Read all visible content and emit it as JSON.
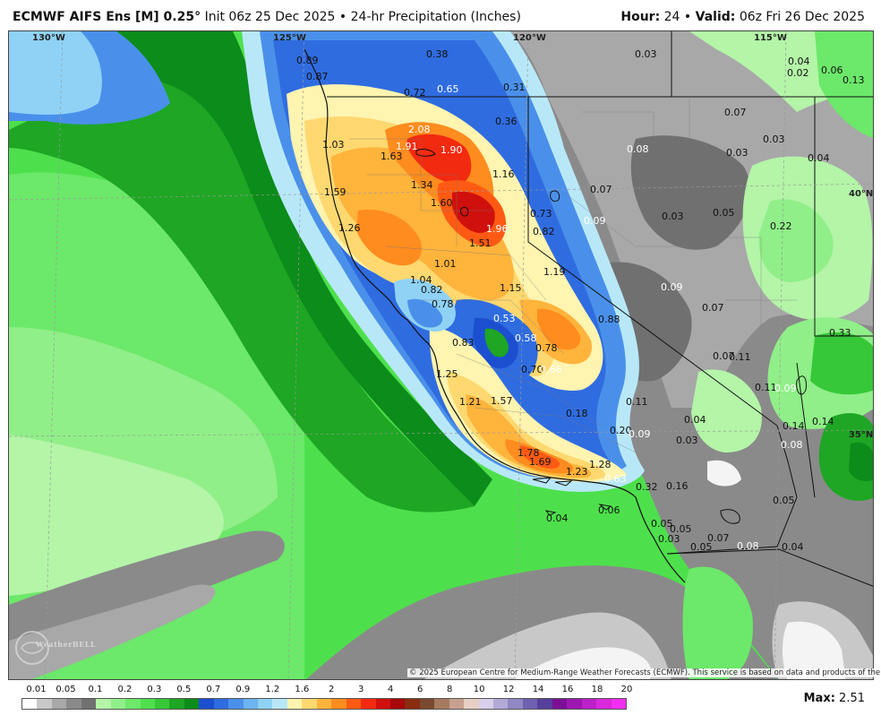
{
  "header": {
    "model_title": "ECMWF AIFS Ens [M] 0.25",
    "degree_symbol": "°",
    "init_text": "Init 06z 25 Dec 2025",
    "bullet": "•",
    "product": "24-hr Precipitation (Inches)",
    "hour_label": "Hour:",
    "hour_value": "24",
    "valid_label": "Valid:",
    "valid_value": "06z Fri 26 Dec 2025"
  },
  "grid_labels": {
    "lon_130": "130°W",
    "lon_125": "125°W",
    "lon_120": "120°W",
    "lon_115": "115°W",
    "lat_40": "40°N",
    "lat_35": "35°N"
  },
  "point_values": [
    {
      "v": "0.89",
      "c": "dark"
    },
    {
      "v": "0.87",
      "c": "dark"
    },
    {
      "v": "0.38",
      "c": "dark"
    },
    {
      "v": "0.72",
      "c": "dark"
    },
    {
      "v": "0.65",
      "c": "white"
    },
    {
      "v": "0.31",
      "c": "dark"
    },
    {
      "v": "0.36",
      "c": "dark"
    },
    {
      "v": "0.03",
      "c": "dark"
    },
    {
      "v": "0.04",
      "c": "dark"
    },
    {
      "v": "0.02",
      "c": "dark"
    },
    {
      "v": "0.06",
      "c": "dark"
    },
    {
      "v": "0.13",
      "c": "dark"
    },
    {
      "v": "2.08",
      "c": "white"
    },
    {
      "v": "1.91",
      "c": "white"
    },
    {
      "v": "1.90",
      "c": "white"
    },
    {
      "v": "1.63",
      "c": "dark"
    },
    {
      "v": "1.03",
      "c": "dark"
    },
    {
      "v": "0.07",
      "c": "dark"
    },
    {
      "v": "0.03",
      "c": "dark"
    },
    {
      "v": "0.08",
      "c": "white"
    },
    {
      "v": "0.03",
      "c": "dark"
    },
    {
      "v": "0.04",
      "c": "dark"
    },
    {
      "v": "1.16",
      "c": "dark"
    },
    {
      "v": "1.34",
      "c": "dark"
    },
    {
      "v": "1.59",
      "c": "dark"
    },
    {
      "v": "0.07",
      "c": "dark"
    },
    {
      "v": "1.60",
      "c": "dark"
    },
    {
      "v": "0.73",
      "c": "dark"
    },
    {
      "v": "0.09",
      "c": "white"
    },
    {
      "v": "0.03",
      "c": "dark"
    },
    {
      "v": "0.05",
      "c": "dark"
    },
    {
      "v": "0.22",
      "c": "dark"
    },
    {
      "v": "1.26",
      "c": "dark"
    },
    {
      "v": "1.96",
      "c": "white"
    },
    {
      "v": "0.82",
      "c": "dark"
    },
    {
      "v": "1.51",
      "c": "dark"
    },
    {
      "v": "1.01",
      "c": "dark"
    },
    {
      "v": "1.19",
      "c": "dark"
    },
    {
      "v": "1.04",
      "c": "dark"
    },
    {
      "v": "0.82",
      "c": "dark"
    },
    {
      "v": "1.15",
      "c": "dark"
    },
    {
      "v": "0.09",
      "c": "white"
    },
    {
      "v": "0.78",
      "c": "dark"
    },
    {
      "v": "0.07",
      "c": "dark"
    },
    {
      "v": "0.53",
      "c": "white"
    },
    {
      "v": "0.88",
      "c": "dark"
    },
    {
      "v": "0.33",
      "c": "dark"
    },
    {
      "v": "0.58",
      "c": "white"
    },
    {
      "v": "0.83",
      "c": "dark"
    },
    {
      "v": "0.78",
      "c": "dark"
    },
    {
      "v": "0.07",
      "c": "dark"
    },
    {
      "v": "0.11",
      "c": "dark"
    },
    {
      "v": "0.70",
      "c": "dark"
    },
    {
      "v": "0.66",
      "c": "white"
    },
    {
      "v": "1.25",
      "c": "dark"
    },
    {
      "v": "0.11",
      "c": "dark"
    },
    {
      "v": "0.09",
      "c": "white"
    },
    {
      "v": "1.21",
      "c": "dark"
    },
    {
      "v": "1.57",
      "c": "dark"
    },
    {
      "v": "0.11",
      "c": "dark"
    },
    {
      "v": "0.18",
      "c": "dark"
    },
    {
      "v": "0.04",
      "c": "dark"
    },
    {
      "v": "0.14",
      "c": "dark"
    },
    {
      "v": "0.14",
      "c": "dark"
    },
    {
      "v": "0.20",
      "c": "dark"
    },
    {
      "v": "0.09",
      "c": "white"
    },
    {
      "v": "0.03",
      "c": "dark"
    },
    {
      "v": "0.08",
      "c": "white"
    },
    {
      "v": "1.78",
      "c": "dark"
    },
    {
      "v": "1.69",
      "c": "dark"
    },
    {
      "v": "1.28",
      "c": "dark"
    },
    {
      "v": "1.23",
      "c": "dark"
    },
    {
      "v": "0.63",
      "c": "white"
    },
    {
      "v": "0.32",
      "c": "dark"
    },
    {
      "v": "0.16",
      "c": "dark"
    },
    {
      "v": "0.05",
      "c": "dark"
    },
    {
      "v": "0.06",
      "c": "dark"
    },
    {
      "v": "0.04",
      "c": "dark"
    },
    {
      "v": "0.05",
      "c": "dark"
    },
    {
      "v": "0.05",
      "c": "dark"
    },
    {
      "v": "0.03",
      "c": "dark"
    },
    {
      "v": "0.07",
      "c": "dark"
    },
    {
      "v": "0.05",
      "c": "dark"
    },
    {
      "v": "0.08",
      "c": "white"
    },
    {
      "v": "0.04",
      "c": "dark"
    }
  ],
  "copyright": "© 2025 European Centre for Medium-Range Weather Forecasts (ECMWF). This service is based on data and products of the ECMWF.",
  "watermark": "WeatherBELL",
  "colorbar": {
    "colors": [
      "#ffffff",
      "#c8c8c8",
      "#a8a8a8",
      "#8a8a8a",
      "#707070",
      "#b4f5a8",
      "#90ef88",
      "#6ce86a",
      "#4ee04c",
      "#36c838",
      "#1ea624",
      "#0c8c1a",
      "#1c4fd0",
      "#2f6ce0",
      "#4a90ea",
      "#6db4f0",
      "#8fd2f6",
      "#b8e8f8",
      "#fff4b0",
      "#ffd870",
      "#ffb43c",
      "#ff8c1e",
      "#ff5a14",
      "#f22a10",
      "#d0100c",
      "#a80808",
      "#8a2c10",
      "#7a4a30",
      "#a67a60",
      "#c8a090",
      "#e8cfc4",
      "#d8d0ec",
      "#b4aad8",
      "#9088c4",
      "#7060b0",
      "#56409c",
      "#7c1094",
      "#9c18b0",
      "#bc20c8",
      "#d828dc",
      "#f030f0"
    ],
    "ticks": [
      "0.01",
      "0.05",
      "0.1",
      "0.2",
      "0.3",
      "0.5",
      "0.7",
      "0.9",
      "1.2",
      "1.6",
      "2",
      "3",
      "4",
      "6",
      "8",
      "10",
      "12",
      "14",
      "16",
      "18",
      "20"
    ]
  },
  "max_label": "Max:",
  "max_value": "2.51"
}
